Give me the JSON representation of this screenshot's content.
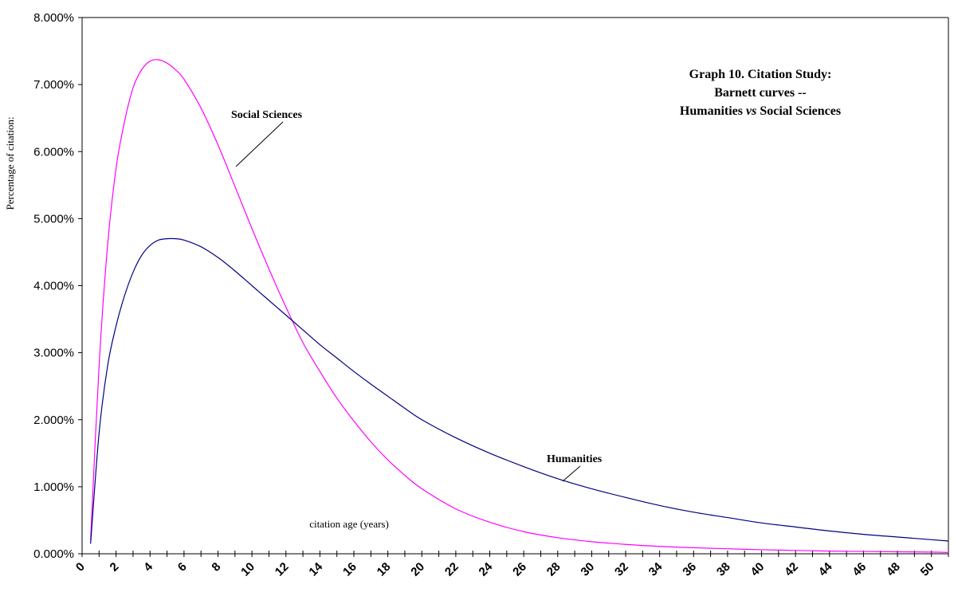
{
  "chart_data": {
    "type": "line",
    "title_lines": [
      "Graph 10.  Citation Study:",
      "Barnett curves --"
    ],
    "title_line3": {
      "part1": "Humanities ",
      "part2": "vs",
      "part3": " Social Sciences"
    },
    "xlabel": "citation age (years)",
    "ylabel": "Percentage of citation:",
    "xlim": [
      0,
      51
    ],
    "ylim": [
      0,
      8
    ],
    "x_ticks": [
      0,
      2,
      4,
      6,
      8,
      10,
      12,
      14,
      16,
      18,
      20,
      22,
      24,
      26,
      28,
      30,
      32,
      34,
      36,
      38,
      40,
      42,
      44,
      46,
      48,
      50
    ],
    "y_ticks": [
      "0.000%",
      "1.000%",
      "2.000%",
      "3.000%",
      "4.000%",
      "5.000%",
      "6.000%",
      "7.000%",
      "8.000%"
    ],
    "y_tick_values": [
      0,
      1,
      2,
      3,
      4,
      5,
      6,
      7,
      8
    ],
    "x": [
      0.5,
      1,
      1.5,
      2,
      2.5,
      3,
      3.5,
      4,
      4.5,
      5,
      5.5,
      6,
      7,
      8,
      9,
      10,
      11,
      12,
      13,
      14,
      15,
      16,
      17,
      18,
      19,
      20,
      22,
      24,
      26,
      28,
      30,
      32,
      34,
      36,
      38,
      40,
      42,
      44,
      46,
      48,
      50,
      51
    ],
    "series": [
      {
        "name": "Social Sciences",
        "color": "#ff00ff",
        "values": [
          0.2,
          2.8,
          4.6,
          5.75,
          6.45,
          6.95,
          7.22,
          7.35,
          7.37,
          7.32,
          7.22,
          7.08,
          6.65,
          6.1,
          5.48,
          4.85,
          4.25,
          3.68,
          3.15,
          2.72,
          2.32,
          1.98,
          1.67,
          1.4,
          1.17,
          0.97,
          0.67,
          0.47,
          0.33,
          0.24,
          0.18,
          0.14,
          0.11,
          0.09,
          0.075,
          0.06,
          0.05,
          0.04,
          0.035,
          0.03,
          0.025,
          0.02
        ]
      },
      {
        "name": "Humanities",
        "color": "#000080",
        "values": [
          0.15,
          1.8,
          2.8,
          3.4,
          3.85,
          4.2,
          4.45,
          4.6,
          4.68,
          4.7,
          4.7,
          4.68,
          4.58,
          4.42,
          4.22,
          4.0,
          3.78,
          3.56,
          3.34,
          3.12,
          2.92,
          2.72,
          2.53,
          2.35,
          2.17,
          2.0,
          1.73,
          1.5,
          1.3,
          1.12,
          0.97,
          0.84,
          0.72,
          0.62,
          0.54,
          0.46,
          0.4,
          0.34,
          0.29,
          0.25,
          0.21,
          0.19
        ]
      }
    ]
  }
}
